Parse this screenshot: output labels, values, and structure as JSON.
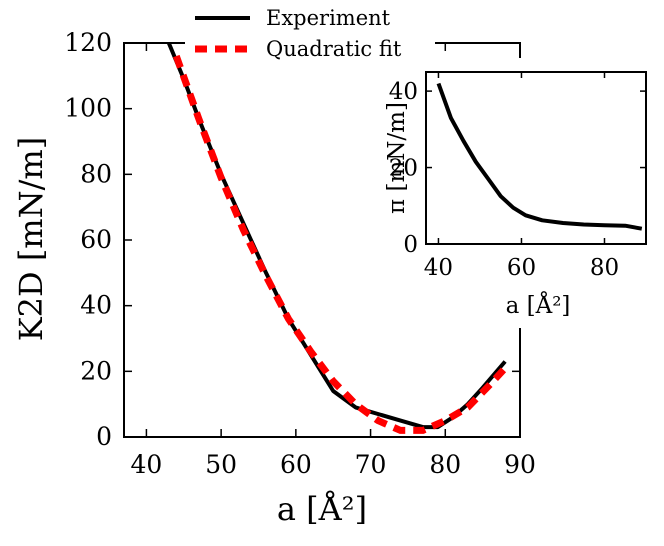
{
  "chart_data": [
    {
      "type": "line",
      "title": "",
      "xlabel": "a [Å²]",
      "ylabel": "K2D [mN/m]",
      "xlim": [
        37,
        90
      ],
      "ylim": [
        0,
        120
      ],
      "xticks": [
        40,
        50,
        60,
        70,
        80,
        90
      ],
      "yticks": [
        0,
        20,
        40,
        60,
        80,
        100,
        120
      ],
      "grid": false,
      "legend_placement": "top-right",
      "series": [
        {
          "name": "Experiment",
          "style": "solid",
          "color": "#000000",
          "x": [
            43,
            45,
            47,
            50,
            53,
            56,
            59,
            62,
            65,
            68,
            71,
            74,
            77,
            79,
            81,
            83,
            85,
            88
          ],
          "y": [
            120,
            109,
            97,
            80,
            65,
            50,
            36,
            25,
            14,
            9,
            7,
            5,
            3,
            3,
            6,
            10,
            15,
            23
          ]
        },
        {
          "name": "Quadratic fit",
          "style": "dashed",
          "color": "#ff0000",
          "x": [
            44,
            47,
            50,
            53,
            56,
            59,
            62,
            65,
            68,
            71,
            74,
            77,
            80,
            83,
            86,
            88
          ],
          "y": [
            116,
            97,
            79,
            63,
            49,
            36,
            26,
            17,
            10,
            5,
            2,
            2,
            5,
            9,
            16,
            21
          ]
        }
      ]
    },
    {
      "type": "line",
      "title": "",
      "xlabel": "a [Å²]",
      "ylabel": "π [mN/m]",
      "xlim": [
        37,
        90
      ],
      "ylim": [
        0,
        45
      ],
      "xticks": [
        40,
        60,
        80
      ],
      "yticks": [
        0,
        20,
        40
      ],
      "grid": false,
      "series": [
        {
          "style": "solid",
          "color": "#000000",
          "x": [
            40,
            43,
            46,
            49,
            52,
            55,
            58,
            61,
            65,
            70,
            75,
            80,
            85,
            89
          ],
          "y": [
            42,
            33,
            27,
            21.5,
            17,
            12.5,
            9.5,
            7.5,
            6.2,
            5.5,
            5.1,
            4.9,
            4.8,
            4
          ]
        }
      ]
    }
  ]
}
